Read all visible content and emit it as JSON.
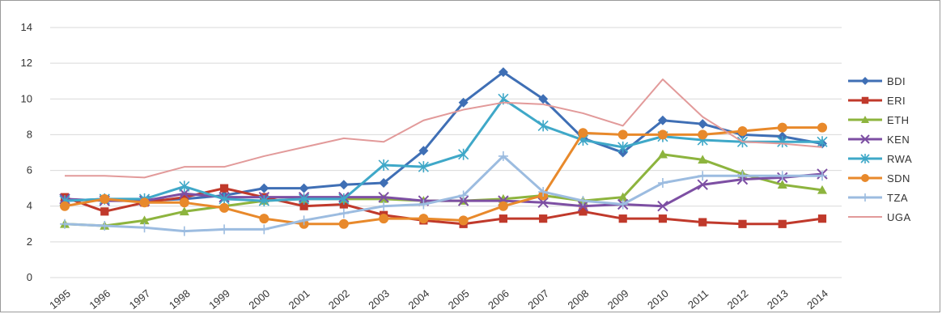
{
  "chart_data": {
    "type": "line",
    "categories": [
      "1995",
      "1996",
      "1997",
      "1998",
      "1999",
      "2000",
      "2001",
      "2002",
      "2003",
      "2004",
      "2005",
      "2006",
      "2007",
      "2008",
      "2009",
      "2010",
      "2011",
      "2012",
      "2013",
      "2014"
    ],
    "ylim": [
      0,
      14
    ],
    "yticks": [
      0,
      2,
      4,
      6,
      8,
      10,
      12,
      14
    ],
    "grid": "horizontal",
    "legend": "right",
    "series": [
      {
        "name": "BDI",
        "color": "#3f6fb5",
        "marker": "diamond",
        "values": [
          4.3,
          4.4,
          4.3,
          4.4,
          4.6,
          5.0,
          5.0,
          5.2,
          5.3,
          7.1,
          9.8,
          11.5,
          10.0,
          7.8,
          7.0,
          8.8,
          8.6,
          8.0,
          7.9,
          7.5
        ]
      },
      {
        "name": "ERI",
        "color": "#c0392b",
        "marker": "square",
        "values": [
          4.5,
          3.7,
          4.2,
          4.5,
          5.0,
          4.5,
          4.0,
          4.1,
          3.5,
          3.2,
          3.0,
          3.3,
          3.3,
          3.7,
          3.3,
          3.3,
          3.1,
          3.0,
          3.0,
          3.3
        ]
      },
      {
        "name": "ETH",
        "color": "#8db43e",
        "marker": "triangle",
        "values": [
          3.0,
          2.9,
          3.2,
          3.7,
          4.0,
          4.3,
          4.4,
          4.4,
          4.4,
          4.3,
          4.3,
          4.4,
          4.6,
          4.3,
          4.5,
          6.9,
          6.6,
          5.8,
          5.2,
          4.9
        ]
      },
      {
        "name": "KEN",
        "color": "#7d4fa3",
        "marker": "x",
        "values": [
          4.4,
          4.3,
          4.3,
          4.7,
          4.5,
          4.5,
          4.5,
          4.5,
          4.5,
          4.3,
          4.3,
          4.3,
          4.2,
          4.0,
          4.1,
          4.0,
          5.2,
          5.5,
          5.6,
          5.8
        ]
      },
      {
        "name": "RWA",
        "color": "#3fa8c8",
        "marker": "star",
        "values": [
          4.3,
          4.4,
          4.4,
          5.1,
          4.4,
          4.3,
          4.4,
          4.4,
          6.3,
          6.2,
          6.9,
          10.0,
          8.5,
          7.7,
          7.3,
          7.9,
          7.7,
          7.6,
          7.6,
          7.6
        ]
      },
      {
        "name": "SDN",
        "color": "#e8892b",
        "marker": "circle",
        "values": [
          4.0,
          4.4,
          4.2,
          4.2,
          3.9,
          3.3,
          3.0,
          3.0,
          3.3,
          3.3,
          3.2,
          4.0,
          4.6,
          8.1,
          8.0,
          8.0,
          8.0,
          8.2,
          8.4,
          8.4
        ]
      },
      {
        "name": "TZA",
        "color": "#9cbce0",
        "marker": "plus",
        "values": [
          3.0,
          2.9,
          2.8,
          2.6,
          2.7,
          2.7,
          3.2,
          3.6,
          4.0,
          4.1,
          4.6,
          6.8,
          4.8,
          4.3,
          4.1,
          5.3,
          5.7,
          5.7,
          5.7,
          5.7
        ]
      },
      {
        "name": "UGA",
        "color": "#e29a9a",
        "marker": "none",
        "values": [
          5.7,
          5.7,
          5.6,
          6.2,
          6.2,
          6.8,
          7.3,
          7.8,
          7.6,
          8.8,
          9.4,
          9.8,
          9.7,
          9.2,
          8.5,
          11.1,
          9.0,
          7.6,
          7.5,
          7.3
        ]
      }
    ]
  }
}
